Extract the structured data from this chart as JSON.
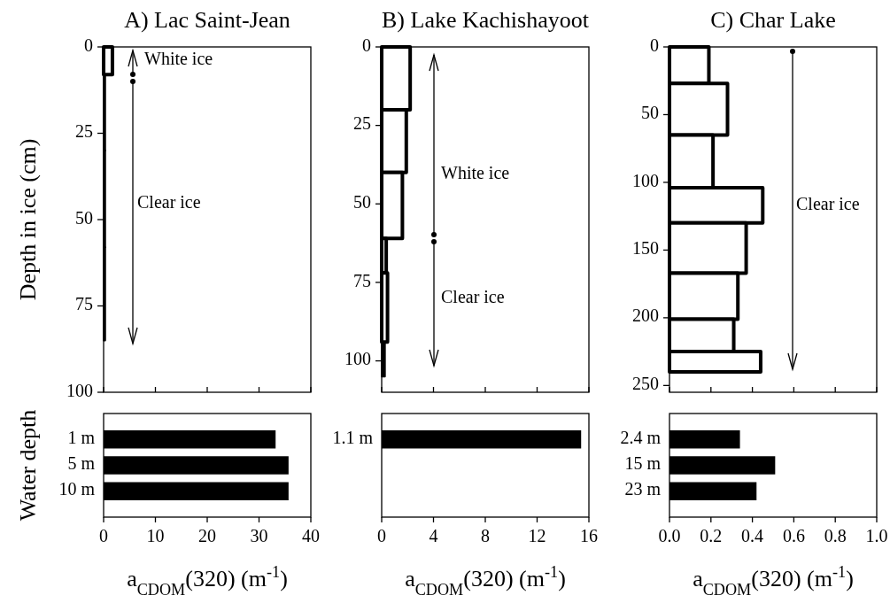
{
  "chart_data": [
    {
      "type": "histogram",
      "orientation": "horizontal",
      "title": "A) Lac Saint-Jean",
      "ylabel": "Depth in ice (cm)",
      "bins": [
        0,
        8,
        30,
        58,
        85
      ],
      "values": [
        1.7,
        0.3,
        0.3,
        0.3
      ],
      "color": "#000000",
      "xlim": [
        0,
        40
      ],
      "xticks": [
        {
          "value": 0,
          "label": null
        },
        {
          "value": 10,
          "label": null
        },
        {
          "value": 20,
          "label": null
        },
        {
          "value": 30,
          "label": null
        },
        {
          "value": 40,
          "label": null
        }
      ],
      "ylim": [
        100,
        0
      ],
      "yticks": [
        0,
        25,
        50,
        75,
        100
      ],
      "tick_labels": "y",
      "annotations": [
        "White ice",
        "Clear ice"
      ]
    },
    {
      "type": "histogram",
      "orientation": "horizontal",
      "title": "B) Lake Kachishayoot",
      "bins": [
        0,
        20,
        40,
        61,
        72,
        94,
        105
      ],
      "values": [
        2.2,
        1.9,
        1.6,
        0.35,
        0.45,
        0.25
      ],
      "color": "#000000",
      "xlim": [
        0,
        16
      ],
      "xticks": [
        {
          "value": 0,
          "label": null
        },
        {
          "value": 4,
          "label": null
        },
        {
          "value": 8,
          "label": null
        },
        {
          "value": 12,
          "label": null
        },
        {
          "value": 16,
          "label": null
        }
      ],
      "ylim": [
        110,
        0
      ],
      "yticks": [
        0,
        25,
        50,
        75,
        100
      ],
      "tick_labels": "y",
      "annotations": [
        "White ice",
        "Clear ice"
      ]
    },
    {
      "type": "histogram",
      "orientation": "horizontal",
      "title": "C) Char Lake",
      "bins": [
        0,
        27,
        65,
        104,
        130,
        167,
        201,
        225,
        240
      ],
      "values": [
        0.19,
        0.28,
        0.21,
        0.45,
        0.37,
        0.33,
        0.31,
        0.44
      ],
      "color": "#000000",
      "xlim": [
        0,
        1
      ],
      "xticks": [
        {
          "value": 0,
          "label": null
        },
        {
          "value": 0.2,
          "label": null
        },
        {
          "value": 0.4,
          "label": null
        },
        {
          "value": 0.6,
          "label": null
        },
        {
          "value": 0.8,
          "label": null
        },
        {
          "value": 1,
          "label": null
        }
      ],
      "ylim": [
        255,
        0
      ],
      "yticks": [
        0,
        50,
        100,
        150,
        200,
        250
      ],
      "tick_labels": "y",
      "annotations": [
        "Clear ice"
      ]
    },
    {
      "type": "bar",
      "orientation": "horizontal",
      "ylabel": "Water depth",
      "xlabel": "a$_{CDOM}$(320) (m$^{-1}$)",
      "categories": [
        "1 m",
        "5 m",
        "10 m"
      ],
      "values": [
        33.2,
        35.7,
        35.7
      ],
      "color": "#000000",
      "xlim": [
        0,
        40
      ],
      "xticks": [
        0,
        10,
        20,
        30,
        40
      ]
    },
    {
      "type": "bar",
      "orientation": "horizontal",
      "xlabel": "a$_{CDOM}$(320) (m$^{-1}$)",
      "categories": [
        "1.1 m"
      ],
      "values": [
        15.4
      ],
      "color": "#000000",
      "xlim": [
        0,
        16
      ],
      "xticks": [
        0,
        4,
        8,
        12,
        16
      ]
    },
    {
      "type": "bar",
      "orientation": "horizontal",
      "xlabel": "a$_{CDOM}$(320) (m$^{-1}$)",
      "categories": [
        "2.4 m",
        "15 m",
        "23 m"
      ],
      "values": [
        0.34,
        0.51,
        0.42
      ],
      "color": "#000000",
      "xlim": [
        0,
        1
      ],
      "xticks": [
        {
          "value": 0,
          "label": "0.0"
        },
        {
          "value": 0.2,
          "label": "0.2"
        },
        {
          "value": 0.4,
          "label": "0.4"
        },
        {
          "value": 0.6,
          "label": "0.6"
        },
        {
          "value": 0.8,
          "label": "0.8"
        },
        {
          "value": 1,
          "label": "1.0"
        }
      ]
    }
  ]
}
